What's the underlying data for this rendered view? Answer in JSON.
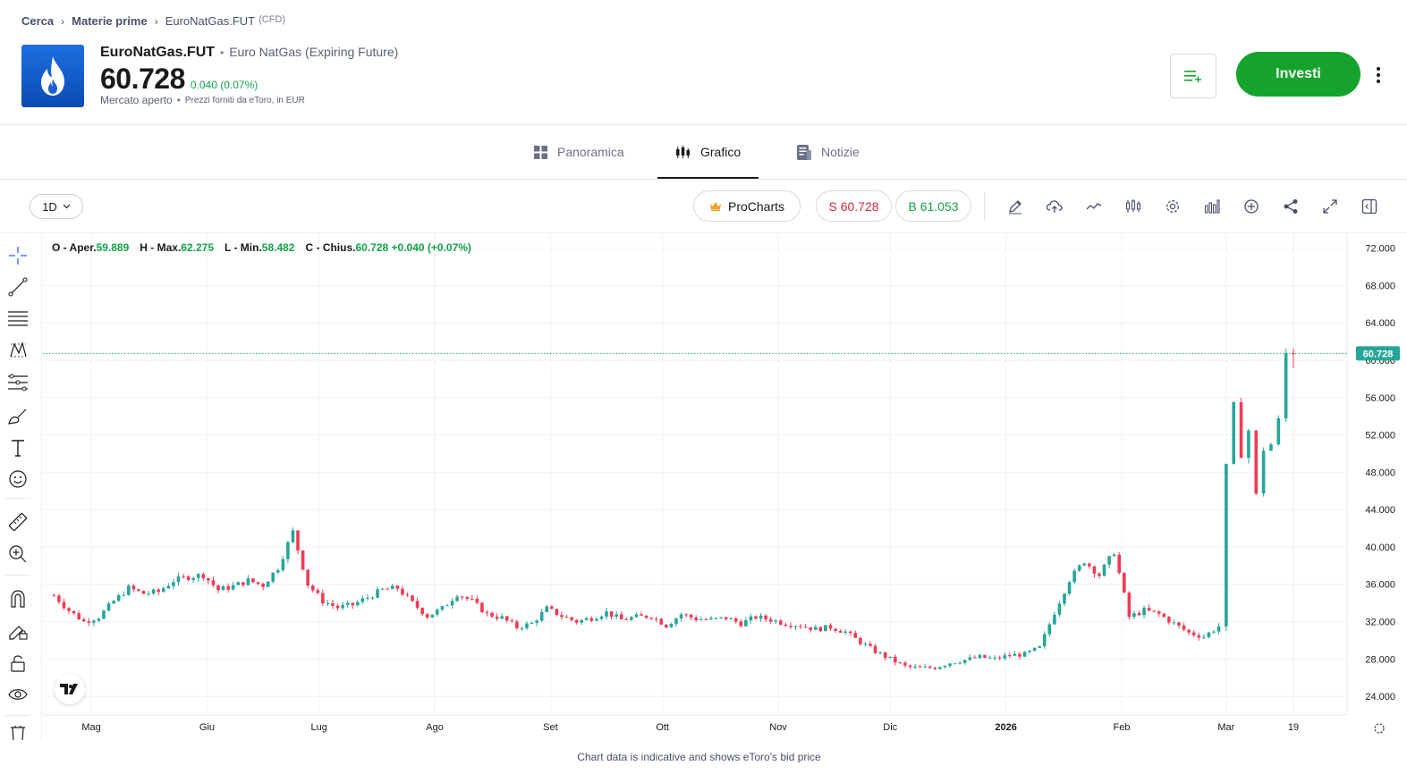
{
  "breadcrumb": {
    "items": [
      "Cerca",
      "Materie prime",
      "EuroNatGas.FUT"
    ],
    "suffix": "(CFD)"
  },
  "instrument": {
    "symbol": "EuroNatGas.FUT",
    "name": "Euro NatGas (Expiring Future)",
    "price": "60.728",
    "change": "0.040 (0.07%)",
    "status": "Mercato aperto",
    "provider": "Prezzi forniti da eToro, in EUR",
    "logo_icon": "flame-icon"
  },
  "actions": {
    "watchlist_icon": "add-to-watchlist-icon",
    "invest_label": "Investi",
    "more_icon": "more-vertical-icon"
  },
  "tabs": [
    {
      "label": "Panoramica",
      "icon": "grid-icon",
      "active": false
    },
    {
      "label": "Grafico",
      "icon": "candles-icon",
      "active": true
    },
    {
      "label": "Notizie",
      "icon": "news-icon",
      "active": false
    }
  ],
  "toolbar": {
    "timeframe": "1D",
    "procharts_label": "ProCharts",
    "sell_label": "S 60.728",
    "buy_label": "B 61.053",
    "icons": [
      "pencil-icon",
      "cloud-icon",
      "line-chart-icon",
      "candles-icon",
      "settings-icon",
      "bar-chart-icon",
      "add-indicator-icon",
      "share-icon",
      "expand-icon",
      "panel-toggle-icon"
    ]
  },
  "left_tools": [
    "crosshair-icon",
    "trend-line-icon",
    "horizontal-lines-icon",
    "pattern-icon",
    "fib-icon",
    "brush-icon",
    "text-icon",
    "emoji-icon",
    "ruler-icon",
    "zoom-in-icon",
    "magnet-icon",
    "lock-drawing-icon",
    "lock-icon",
    "eye-icon",
    "trash-icon"
  ],
  "ohlc": {
    "o_label": "O - Aper.",
    "o": "59.889",
    "h_label": "H - Max.",
    "h": "62.275",
    "l_label": "L - Min.",
    "l": "58.482",
    "c_label": "C - Chius.",
    "c": "60.728",
    "change": "+0.040 (+0.07%)"
  },
  "colors": {
    "up": "#26a69a",
    "down": "#ef3b55",
    "accent_green": "#16a32c",
    "price_line": "#26a69a"
  },
  "chart_data": {
    "type": "candlestick",
    "y_ticks": [
      "72.000",
      "68.000",
      "64.000",
      "60.000",
      "56.000",
      "52.000",
      "48.000",
      "44.000",
      "40.000",
      "36.000",
      "32.000",
      "28.000",
      "24.000"
    ],
    "ylim": [
      22,
      73.5
    ],
    "x_labels": [
      {
        "label": "Mag",
        "date": "2025-05-01",
        "bold": false
      },
      {
        "label": "Giu",
        "date": "2025-06-01",
        "bold": false
      },
      {
        "label": "Lug",
        "date": "2025-07-01",
        "bold": false
      },
      {
        "label": "Ago",
        "date": "2025-08-01",
        "bold": false
      },
      {
        "label": "Set",
        "date": "2025-09-01",
        "bold": false
      },
      {
        "label": "Ott",
        "date": "2025-10-01",
        "bold": false
      },
      {
        "label": "Nov",
        "date": "2025-11-01",
        "bold": false
      },
      {
        "label": "Dic",
        "date": "2025-12-01",
        "bold": false
      },
      {
        "label": "2026",
        "date": "2026-01-01",
        "bold": true
      },
      {
        "label": "Feb",
        "date": "2026-02-01",
        "bold": false
      },
      {
        "label": "Mar",
        "date": "2026-03-01",
        "bold": false
      },
      {
        "label": "19",
        "date": "2026-03-19",
        "bold": false
      }
    ],
    "current_price": 60.728,
    "current_price_label": "60.728",
    "close_series": [
      [
        "2025-04-21",
        34.8
      ],
      [
        "2025-04-25",
        33.2
      ],
      [
        "2025-04-29",
        32.0
      ],
      [
        "2025-05-03",
        32.5
      ],
      [
        "2025-05-07",
        34.2
      ],
      [
        "2025-05-11",
        35.6
      ],
      [
        "2025-05-15",
        35.0
      ],
      [
        "2025-05-19",
        35.2
      ],
      [
        "2025-05-23",
        36.4
      ],
      [
        "2025-05-27",
        36.8
      ],
      [
        "2025-05-31",
        37.0
      ],
      [
        "2025-06-04",
        35.4
      ],
      [
        "2025-06-08",
        35.8
      ],
      [
        "2025-06-12",
        36.4
      ],
      [
        "2025-06-16",
        35.9
      ],
      [
        "2025-06-20",
        37.8
      ],
      [
        "2025-06-24",
        41.6
      ],
      [
        "2025-06-28",
        36.0
      ],
      [
        "2025-07-02",
        34.2
      ],
      [
        "2025-07-06",
        33.5
      ],
      [
        "2025-07-10",
        33.8
      ],
      [
        "2025-07-14",
        34.6
      ],
      [
        "2025-07-18",
        35.4
      ],
      [
        "2025-07-22",
        35.6
      ],
      [
        "2025-07-26",
        34.0
      ],
      [
        "2025-07-30",
        32.6
      ],
      [
        "2025-08-03",
        33.4
      ],
      [
        "2025-08-07",
        35.0
      ],
      [
        "2025-08-11",
        34.2
      ],
      [
        "2025-08-15",
        32.8
      ],
      [
        "2025-08-19",
        32.4
      ],
      [
        "2025-08-23",
        31.4
      ],
      [
        "2025-08-27",
        31.8
      ],
      [
        "2025-08-31",
        33.4
      ],
      [
        "2025-09-04",
        32.6
      ],
      [
        "2025-09-08",
        32.0
      ],
      [
        "2025-09-12",
        32.4
      ],
      [
        "2025-09-16",
        33.0
      ],
      [
        "2025-09-20",
        32.2
      ],
      [
        "2025-09-24",
        32.5
      ],
      [
        "2025-09-28",
        32.6
      ],
      [
        "2025-10-02",
        31.6
      ],
      [
        "2025-10-06",
        32.8
      ],
      [
        "2025-10-10",
        32.3
      ],
      [
        "2025-10-14",
        32.2
      ],
      [
        "2025-10-18",
        32.4
      ],
      [
        "2025-10-22",
        31.8
      ],
      [
        "2025-10-26",
        32.5
      ],
      [
        "2025-10-30",
        32.2
      ],
      [
        "2025-11-03",
        31.8
      ],
      [
        "2025-11-07",
        31.6
      ],
      [
        "2025-11-11",
        31.2
      ],
      [
        "2025-11-15",
        31.4
      ],
      [
        "2025-11-19",
        30.9
      ],
      [
        "2025-11-23",
        29.8
      ],
      [
        "2025-11-27",
        28.8
      ],
      [
        "2025-12-01",
        28.0
      ],
      [
        "2025-12-05",
        27.2
      ],
      [
        "2025-12-09",
        27.0
      ],
      [
        "2025-12-13",
        27.1
      ],
      [
        "2025-12-17",
        27.6
      ],
      [
        "2025-12-21",
        27.9
      ],
      [
        "2025-12-25",
        28.2
      ],
      [
        "2025-12-29",
        28.0
      ],
      [
        "2026-01-02",
        28.4
      ],
      [
        "2026-01-06",
        28.5
      ],
      [
        "2026-01-10",
        29.2
      ],
      [
        "2026-01-14",
        33.0
      ],
      [
        "2026-01-18",
        36.5
      ],
      [
        "2026-01-22",
        38.5
      ],
      [
        "2026-01-26",
        37.0
      ],
      [
        "2026-01-30",
        39.5
      ],
      [
        "2026-02-03",
        32.5
      ],
      [
        "2026-02-07",
        33.2
      ],
      [
        "2026-02-11",
        32.8
      ],
      [
        "2026-02-15",
        31.8
      ],
      [
        "2026-02-19",
        30.8
      ],
      [
        "2026-02-23",
        30.4
      ],
      [
        "2026-02-27",
        31.5
      ],
      [
        "2026-03-01",
        48.5
      ],
      [
        "2026-03-03",
        55.0
      ],
      [
        "2026-03-05",
        50.0
      ],
      [
        "2026-03-07",
        52.5
      ],
      [
        "2026-03-09",
        45.5
      ],
      [
        "2026-03-11",
        50.5
      ],
      [
        "2026-03-13",
        51.0
      ],
      [
        "2026-03-15",
        53.5
      ],
      [
        "2026-03-17",
        60.7
      ],
      [
        "2026-03-19",
        60.728
      ]
    ]
  },
  "footer_note": "Chart data is indicative and shows eToro's bid price"
}
